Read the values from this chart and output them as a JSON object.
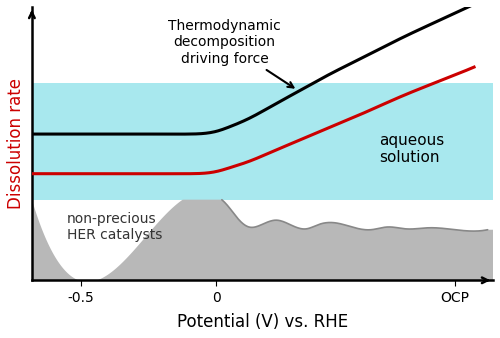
{
  "xlabel": "Potential (V) vs. RHE",
  "ylabel": "Dissolution rate",
  "ylabel_color": "#cc0000",
  "xlabel_fontsize": 12,
  "ylabel_fontsize": 12,
  "xtick_labels": [
    "-0.5",
    "0",
    "OCP"
  ],
  "background_color": "#ffffff",
  "aqueous_color": "#a8e8ee",
  "catalyst_color": "#b8b8b8",
  "catalyst_dark_color": "#888888",
  "black_line_color": "#000000",
  "red_line_color": "#cc0000",
  "line_width": 2.2,
  "aqueous_label": "aqueous\nsolution",
  "catalyst_label": "non-precious\nHER catalysts",
  "annotation_text": "Thermodynamic\ndecomposition\ndriving force"
}
